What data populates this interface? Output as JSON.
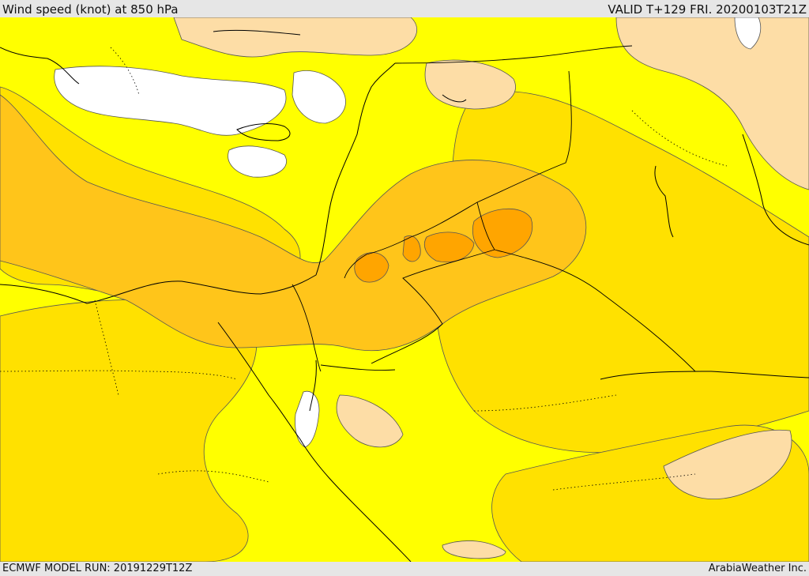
{
  "header": {
    "title": "Wind speed (knot) at 850 hPa",
    "valid": "VALID T+129 FRI. 20200103T21Z"
  },
  "footer": {
    "model_run": "ECMWF MODEL RUN: 20191229T12Z",
    "credit": "ArabiaWeather Inc."
  },
  "palette": {
    "white": "#ffffff",
    "peach": "#fddda6",
    "yellow": "#ffff00",
    "gold": "#ffe100",
    "amber": "#ffc51a",
    "orange": "#ffa500",
    "border": "#000000",
    "contour": "#555555"
  }
}
